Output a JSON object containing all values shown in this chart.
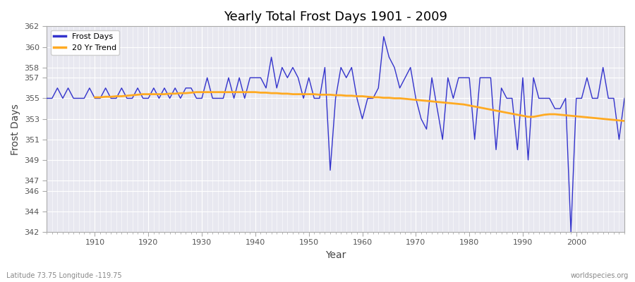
{
  "title": "Yearly Total Frost Days 1901 - 2009",
  "xlabel": "Year",
  "ylabel": "Frost Days",
  "footer_left": "Latitude 73.75 Longitude -119.75",
  "footer_right": "worldspecies.org",
  "legend_entries": [
    "Frost Days",
    "20 Yr Trend"
  ],
  "line_color": "#3333cc",
  "trend_color": "#ffaa22",
  "plot_bg_color": "#e8e8f0",
  "fig_bg_color": "#ffffff",
  "ylim": [
    342,
    362
  ],
  "yticks": [
    342,
    344,
    346,
    347,
    349,
    351,
    353,
    355,
    357,
    358,
    360,
    362
  ],
  "xlim": [
    1901,
    2009
  ],
  "years": [
    1901,
    1902,
    1903,
    1904,
    1905,
    1906,
    1907,
    1908,
    1909,
    1910,
    1911,
    1912,
    1913,
    1914,
    1915,
    1916,
    1917,
    1918,
    1919,
    1920,
    1921,
    1922,
    1923,
    1924,
    1925,
    1926,
    1927,
    1928,
    1929,
    1930,
    1931,
    1932,
    1933,
    1934,
    1935,
    1936,
    1937,
    1938,
    1939,
    1940,
    1941,
    1942,
    1943,
    1944,
    1945,
    1946,
    1947,
    1948,
    1949,
    1950,
    1951,
    1952,
    1953,
    1954,
    1955,
    1956,
    1957,
    1958,
    1959,
    1960,
    1961,
    1962,
    1963,
    1964,
    1965,
    1966,
    1967,
    1968,
    1969,
    1970,
    1971,
    1972,
    1973,
    1974,
    1975,
    1976,
    1977,
    1978,
    1979,
    1980,
    1981,
    1982,
    1983,
    1984,
    1985,
    1986,
    1987,
    1988,
    1989,
    1990,
    1991,
    1992,
    1993,
    1994,
    1995,
    1996,
    1997,
    1998,
    1999,
    2000,
    2001,
    2002,
    2003,
    2004,
    2005,
    2006,
    2007,
    2008,
    2009
  ],
  "frost_days": [
    355,
    355,
    356,
    355,
    356,
    355,
    355,
    355,
    356,
    355,
    355,
    356,
    355,
    355,
    356,
    355,
    355,
    356,
    355,
    355,
    356,
    355,
    356,
    355,
    356,
    355,
    356,
    356,
    355,
    355,
    357,
    355,
    355,
    355,
    357,
    355,
    357,
    355,
    357,
    357,
    357,
    356,
    359,
    356,
    358,
    357,
    358,
    357,
    355,
    357,
    355,
    355,
    358,
    348,
    355,
    358,
    357,
    358,
    355,
    353,
    355,
    355,
    356,
    361,
    359,
    358,
    356,
    357,
    358,
    355,
    353,
    352,
    357,
    354,
    351,
    357,
    355,
    357,
    357,
    357,
    351,
    357,
    357,
    357,
    350,
    356,
    355,
    355,
    350,
    357,
    349,
    357,
    355,
    355,
    355,
    354,
    354,
    355,
    342,
    355,
    355,
    357,
    355,
    355,
    358,
    355,
    355,
    351,
    355
  ],
  "trend_years": [
    1910,
    1911,
    1912,
    1913,
    1914,
    1915,
    1916,
    1917,
    1918,
    1919,
    1920,
    1921,
    1922,
    1923,
    1924,
    1925,
    1926,
    1927,
    1928,
    1929,
    1930,
    1931,
    1932,
    1933,
    1934,
    1935,
    1936,
    1937,
    1938,
    1939,
    1940,
    1941,
    1942,
    1943,
    1944,
    1945,
    1946,
    1947,
    1948,
    1949,
    1950,
    1951,
    1952,
    1953,
    1954,
    1955,
    1956,
    1957,
    1958,
    1959,
    1960,
    1961,
    1962,
    1963,
    1964,
    1965,
    1966,
    1967,
    1968,
    1969,
    1970,
    1971,
    1972,
    1973,
    1974,
    1975,
    1976,
    1977,
    1978,
    1979,
    1980,
    1981,
    1982,
    1983,
    1984,
    1985,
    1986,
    1987,
    1988,
    1989,
    1990,
    1991,
    1992,
    1993,
    1994,
    1995,
    1996,
    1997,
    1998,
    1999,
    2000,
    2001,
    2002,
    2003,
    2004,
    2005,
    2006,
    2007,
    2008,
    2009
  ],
  "trend_values": [
    355.1,
    355.1,
    355.15,
    355.15,
    355.2,
    355.2,
    355.25,
    355.3,
    355.35,
    355.4,
    355.4,
    355.4,
    355.4,
    355.4,
    355.45,
    355.45,
    355.5,
    355.5,
    355.55,
    355.6,
    355.6,
    355.6,
    355.6,
    355.6,
    355.6,
    355.6,
    355.6,
    355.6,
    355.6,
    355.6,
    355.6,
    355.55,
    355.55,
    355.5,
    355.5,
    355.45,
    355.45,
    355.4,
    355.4,
    355.4,
    355.4,
    355.4,
    355.35,
    355.35,
    355.35,
    355.3,
    355.3,
    355.25,
    355.25,
    355.2,
    355.2,
    355.15,
    355.1,
    355.1,
    355.05,
    355.05,
    355.0,
    355.0,
    354.95,
    354.9,
    354.85,
    354.8,
    354.75,
    354.7,
    354.65,
    354.6,
    354.55,
    354.5,
    354.45,
    354.4,
    354.3,
    354.2,
    354.1,
    354.0,
    353.9,
    353.8,
    353.7,
    353.6,
    353.5,
    353.4,
    353.3,
    353.2,
    353.2,
    353.3,
    353.4,
    353.45,
    353.45,
    353.4,
    353.35,
    353.3,
    353.25,
    353.2,
    353.15,
    353.1,
    353.05,
    353.0,
    352.95,
    352.9,
    352.85,
    352.8
  ]
}
